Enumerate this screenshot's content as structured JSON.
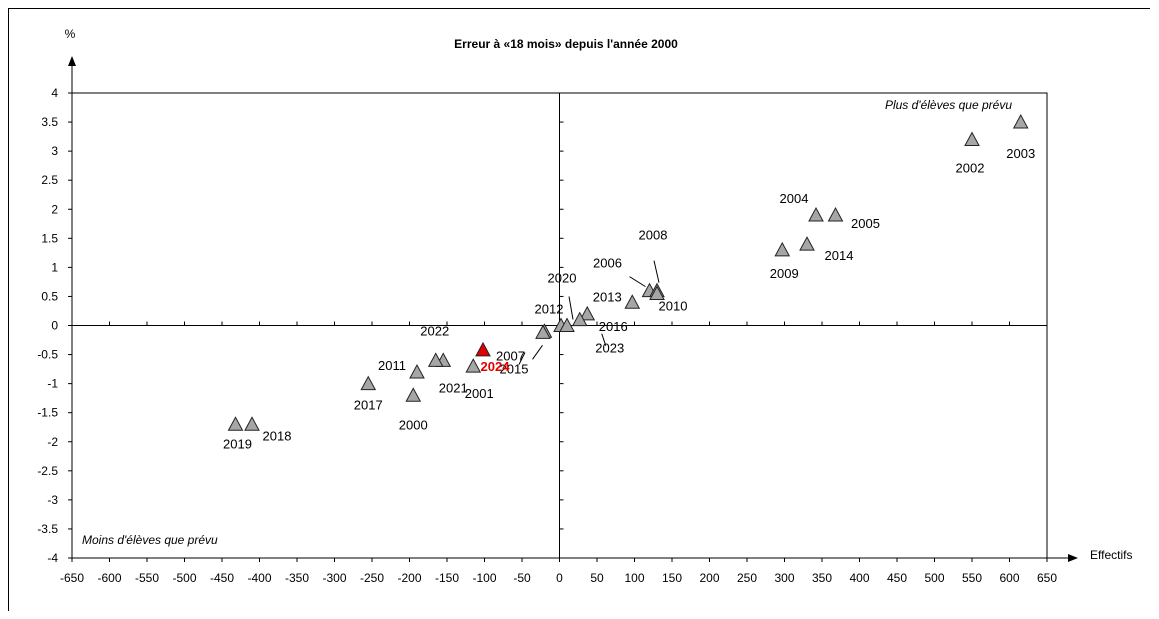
{
  "chart_data": {
    "type": "scatter",
    "title": "Erreur à «18 mois» depuis l'année 2000",
    "xlabel": "Effectifs",
    "ylabel": "%",
    "xlim": [
      -650,
      650
    ],
    "ylim": [
      -4,
      4
    ],
    "xticks": [
      -650,
      -600,
      -550,
      -500,
      -450,
      -400,
      -350,
      -300,
      -250,
      -200,
      -150,
      -100,
      -50,
      0,
      50,
      100,
      150,
      200,
      250,
      300,
      350,
      400,
      450,
      500,
      550,
      600,
      650
    ],
    "yticks": [
      4,
      3.5,
      3,
      2.5,
      2,
      1.5,
      1,
      0.5,
      0,
      -0.5,
      -1,
      -1.5,
      -2,
      -2.5,
      -3,
      -3.5,
      -4
    ],
    "annotation_top": "Plus d'élèves que prévu",
    "annotation_bottom": "Moins d'élèves que prévu",
    "highlight_color": "#e00000",
    "marker_color": "#a6a6a6",
    "points": [
      {
        "label": "2000",
        "x": -195,
        "y": -1.2
      },
      {
        "label": "2001",
        "x": -115,
        "y": -0.7
      },
      {
        "label": "2002",
        "x": 550,
        "y": 3.2
      },
      {
        "label": "2003",
        "x": 615,
        "y": 3.5
      },
      {
        "label": "2004",
        "x": 342,
        "y": 1.9
      },
      {
        "label": "2005",
        "x": 368,
        "y": 1.9
      },
      {
        "label": "2006",
        "x": 120,
        "y": 0.6
      },
      {
        "label": "2007",
        "x": -20,
        "y": -0.1
      },
      {
        "label": "2008",
        "x": 130,
        "y": 0.6
      },
      {
        "label": "2009",
        "x": 297,
        "y": 1.3
      },
      {
        "label": "2010",
        "x": 130,
        "y": 0.55
      },
      {
        "label": "2011",
        "x": -190,
        "y": -0.8
      },
      {
        "label": "2012",
        "x": 2,
        "y": 0.0
      },
      {
        "label": "2013",
        "x": 97,
        "y": 0.4
      },
      {
        "label": "2014",
        "x": 330,
        "y": 1.4
      },
      {
        "label": "2015",
        "x": -22,
        "y": -0.12
      },
      {
        "label": "2016",
        "x": 37,
        "y": 0.2
      },
      {
        "label": "2017",
        "x": -255,
        "y": -1.0
      },
      {
        "label": "2018",
        "x": -410,
        "y": -1.7
      },
      {
        "label": "2019",
        "x": -432,
        "y": -1.7
      },
      {
        "label": "2020",
        "x": 10,
        "y": 0.0
      },
      {
        "label": "2021",
        "x": -155,
        "y": -0.6
      },
      {
        "label": "2022",
        "x": -165,
        "y": -0.6
      },
      {
        "label": "2023",
        "x": 27,
        "y": 0.1
      },
      {
        "label": "2024",
        "x": -102,
        "y": -0.42,
        "highlight": true
      }
    ]
  }
}
